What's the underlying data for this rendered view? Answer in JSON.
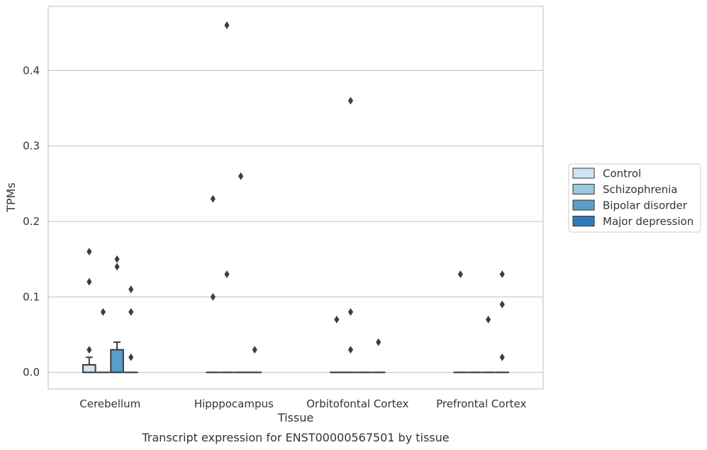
{
  "chart_data": {
    "type": "box",
    "title": "",
    "caption": "Transcript expression for ENST00000567501 by tissue",
    "xlabel": "Tissue",
    "ylabel": "TPMs",
    "ylim": [
      -0.022,
      0.485
    ],
    "yticks": [
      "0.0",
      "0.1",
      "0.2",
      "0.3",
      "0.4"
    ],
    "ytick_values": [
      0.0,
      0.1,
      0.2,
      0.3,
      0.4
    ],
    "categories": [
      "Cerebellum",
      "Hipppocampus",
      "Orbitofontal Cortex",
      "Prefrontal Cortex"
    ],
    "grid": "horizontal",
    "legend_position": "right",
    "series": [
      {
        "name": "Control",
        "color": "#d2e3f3",
        "boxes": [
          {
            "q1": 0.0,
            "median": 0.0,
            "q3": 0.01,
            "whisker_low": 0.0,
            "whisker_high": 0.02,
            "outliers": [
              0.03,
              0.12,
              0.16
            ]
          },
          {
            "q1": 0.0,
            "median": 0.0,
            "q3": 0.0,
            "whisker_low": 0.0,
            "whisker_high": 0.0,
            "outliers": [
              0.1,
              0.23
            ]
          },
          {
            "q1": 0.0,
            "median": 0.0,
            "q3": 0.0,
            "whisker_low": 0.0,
            "whisker_high": 0.0,
            "outliers": [
              0.07
            ]
          },
          {
            "q1": 0.0,
            "median": 0.0,
            "q3": 0.0,
            "whisker_low": 0.0,
            "whisker_high": 0.0,
            "outliers": [
              0.13
            ]
          }
        ]
      },
      {
        "name": "Schizophrenia",
        "color": "#9ac8e0",
        "boxes": [
          {
            "q1": 0.0,
            "median": 0.0,
            "q3": 0.0,
            "whisker_low": 0.0,
            "whisker_high": 0.0,
            "outliers": [
              0.08
            ]
          },
          {
            "q1": 0.0,
            "median": 0.0,
            "q3": 0.0,
            "whisker_low": 0.0,
            "whisker_high": 0.0,
            "outliers": [
              0.13,
              0.46
            ]
          },
          {
            "q1": 0.0,
            "median": 0.0,
            "q3": 0.0,
            "whisker_low": 0.0,
            "whisker_high": 0.0,
            "outliers": [
              0.03,
              0.08,
              0.36
            ]
          },
          {
            "q1": 0.0,
            "median": 0.0,
            "q3": 0.0,
            "whisker_low": 0.0,
            "whisker_high": 0.0,
            "outliers": []
          }
        ]
      },
      {
        "name": "Bipolar disorder",
        "color": "#5a9ec9",
        "boxes": [
          {
            "q1": 0.0,
            "median": 0.0,
            "q3": 0.03,
            "whisker_low": 0.0,
            "whisker_high": 0.04,
            "outliers": [
              0.14,
              0.15
            ]
          },
          {
            "q1": 0.0,
            "median": 0.0,
            "q3": 0.0,
            "whisker_low": 0.0,
            "whisker_high": 0.0,
            "outliers": [
              0.26
            ]
          },
          {
            "q1": 0.0,
            "median": 0.0,
            "q3": 0.0,
            "whisker_low": 0.0,
            "whisker_high": 0.0,
            "outliers": []
          },
          {
            "q1": 0.0,
            "median": 0.0,
            "q3": 0.0,
            "whisker_low": 0.0,
            "whisker_high": 0.0,
            "outliers": [
              0.07
            ]
          }
        ]
      },
      {
        "name": "Major depression",
        "color": "#2d7dbb",
        "boxes": [
          {
            "q1": 0.0,
            "median": 0.0,
            "q3": 0.0,
            "whisker_low": 0.0,
            "whisker_high": 0.0,
            "outliers": [
              0.02,
              0.08,
              0.11
            ]
          },
          {
            "q1": 0.0,
            "median": 0.0,
            "q3": 0.0,
            "whisker_low": 0.0,
            "whisker_high": 0.0,
            "outliers": [
              0.03
            ]
          },
          {
            "q1": 0.0,
            "median": 0.0,
            "q3": 0.0,
            "whisker_low": 0.0,
            "whisker_high": 0.0,
            "outliers": [
              0.04
            ]
          },
          {
            "q1": 0.0,
            "median": 0.0,
            "q3": 0.0,
            "whisker_low": 0.0,
            "whisker_high": 0.0,
            "outliers": [
              0.02,
              0.09,
              0.13
            ]
          }
        ]
      }
    ]
  }
}
